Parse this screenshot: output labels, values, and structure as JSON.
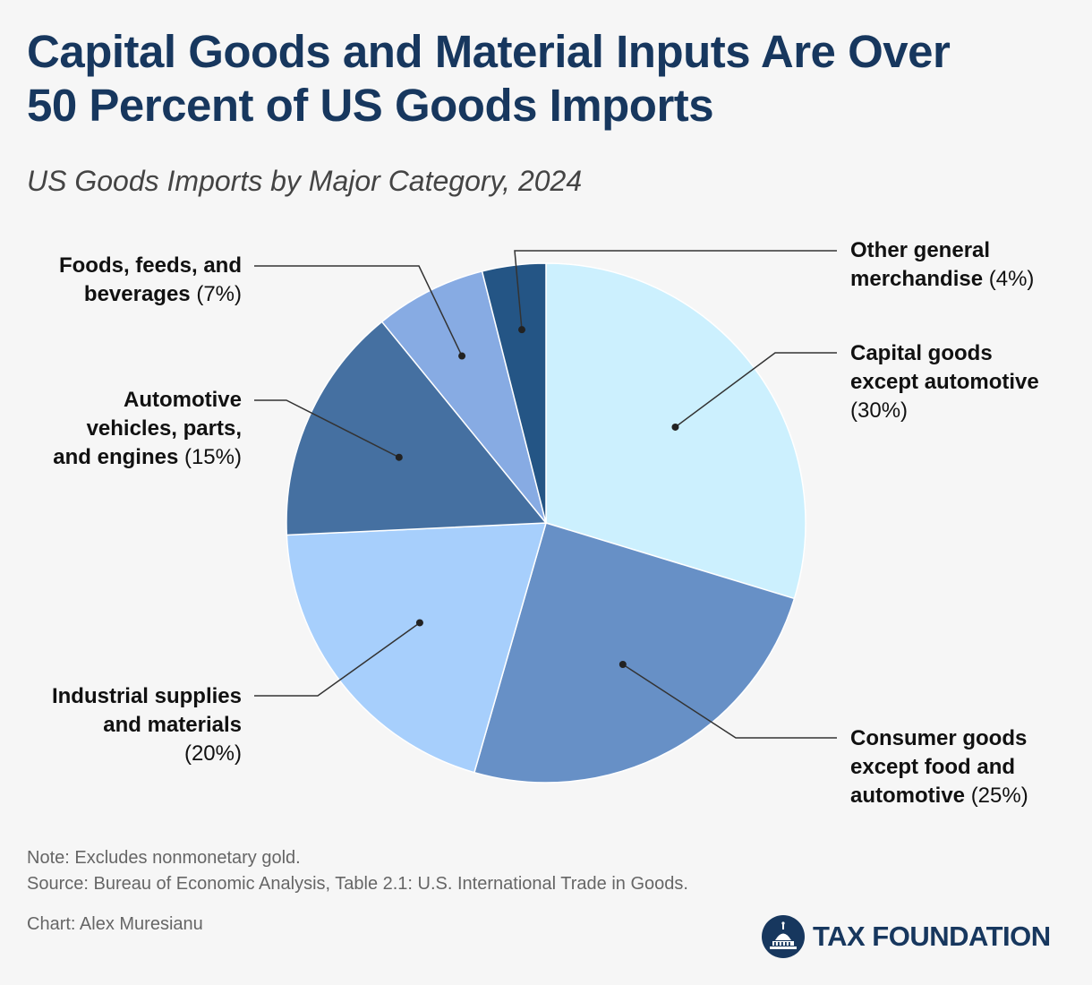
{
  "title_lines": [
    "Capital Goods and Material Inputs Are Over",
    "50 Percent of US Goods Imports"
  ],
  "subtitle": "US Goods Imports by Major Category, 2024",
  "colors": {
    "title": "#17375e",
    "capital": "#ccf0fe",
    "consumer": "#6790c6",
    "industrial": "#a7cffc",
    "automotive": "#4570a1",
    "foods": "#87abe3",
    "other": "#245585"
  },
  "chart_data": {
    "type": "pie",
    "start_angle_deg": 0,
    "direction": "clockwise",
    "slices": [
      {
        "key": "capital",
        "label_lines": [
          "Capital goods",
          "except automotive"
        ],
        "pct_text": "(30%)",
        "value": 30
      },
      {
        "key": "consumer",
        "label_lines": [
          "Consumer goods",
          "except food and",
          "automotive"
        ],
        "pct_text": "(25%)",
        "value": 25
      },
      {
        "key": "industrial",
        "label_lines": [
          "Industrial supplies",
          "and materials"
        ],
        "pct_text": "(20%)",
        "value": 20
      },
      {
        "key": "automotive",
        "label_lines": [
          "Automotive",
          "vehicles, parts,",
          "and engines"
        ],
        "pct_text": "(15%)",
        "value": 15
      },
      {
        "key": "foods",
        "label_lines": [
          "Foods, feeds, and",
          "beverages"
        ],
        "pct_text": "(7%)",
        "value": 7
      },
      {
        "key": "other",
        "label_lines": [
          "Other general",
          "merchandise"
        ],
        "pct_text": "(4%)",
        "value": 4
      }
    ]
  },
  "note": "Note: Excludes nonmonetary gold.",
  "source": "Source: Bureau of Economic Analysis, Table 2.1: U.S. International Trade in Goods.",
  "credit": "Chart: Alex Muresianu",
  "brand": "TAX FOUNDATION"
}
